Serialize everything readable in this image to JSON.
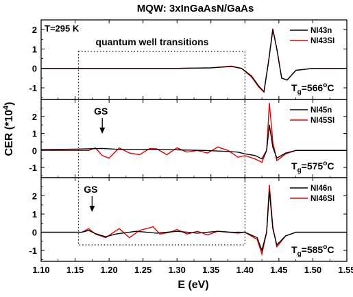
{
  "chart_data": {
    "type": "line",
    "title": "MQW: 3xInGaAsN/GaAs",
    "xlabel": "E (eV)",
    "ylabel": {
      "main": "CER (*10",
      "exp": "4",
      "close": ")"
    },
    "xlim": [
      1.1,
      1.55
    ],
    "xticks": [
      "1.10",
      "1.15",
      "1.20",
      "1.25",
      "1.30",
      "1.35",
      "1.40",
      "1.45",
      "1.50",
      "1.55"
    ],
    "annotations": {
      "temperature": "T=295 K",
      "qw_box_label": "quantum well transitions",
      "qw_box_xrange": [
        1.155,
        1.4
      ],
      "gs_label": "GS"
    },
    "panels": [
      {
        "ylim": [
          -1.6,
          2.5
        ],
        "yticks": [
          "2",
          "1",
          "0",
          "-1"
        ],
        "tg": {
          "pre": "T",
          "sub": "g",
          "val": "=566",
          "sup": "o",
          "unit": "C"
        },
        "series": [
          {
            "name": "NI43n",
            "color": "#000000",
            "points": [
              [
                1.1,
                0
              ],
              [
                1.3,
                0
              ],
              [
                1.35,
                0.03
              ],
              [
                1.38,
                0.1
              ],
              [
                1.395,
                0.0
              ],
              [
                1.41,
                -0.4
              ],
              [
                1.42,
                -0.9
              ],
              [
                1.428,
                -1.2
              ],
              [
                1.435,
                0.4
              ],
              [
                1.441,
                2.0
              ],
              [
                1.447,
                1.0
              ],
              [
                1.454,
                -0.5
              ],
              [
                1.462,
                -0.6
              ],
              [
                1.475,
                -0.1
              ],
              [
                1.5,
                0
              ],
              [
                1.55,
                0
              ]
            ]
          },
          {
            "name": "NI43SI",
            "color": "#e00000",
            "points": [
              [
                1.1,
                0
              ],
              [
                1.3,
                0
              ],
              [
                1.35,
                0.03
              ],
              [
                1.38,
                0.12
              ],
              [
                1.395,
                0.0
              ],
              [
                1.41,
                -0.45
              ],
              [
                1.42,
                -0.95
              ],
              [
                1.428,
                -1.22
              ],
              [
                1.435,
                0.4
              ],
              [
                1.441,
                2.05
              ],
              [
                1.447,
                1.0
              ],
              [
                1.454,
                -0.5
              ],
              [
                1.462,
                -0.6
              ],
              [
                1.475,
                -0.1
              ],
              [
                1.5,
                0
              ],
              [
                1.55,
                0
              ]
            ]
          }
        ]
      },
      {
        "ylim": [
          -1.6,
          3.0
        ],
        "yticks": [
          "2",
          "1",
          "0",
          "-1"
        ],
        "tg": {
          "pre": "T",
          "sub": "g",
          "val": "=575",
          "sup": "o",
          "unit": "C"
        },
        "gs_energy": 1.19,
        "series": [
          {
            "name": "NI45n",
            "color": "#000000",
            "points": [
              [
                1.1,
                0.05
              ],
              [
                1.15,
                0.08
              ],
              [
                1.19,
                0.12
              ],
              [
                1.22,
                0.05
              ],
              [
                1.26,
                0.06
              ],
              [
                1.3,
                0.04
              ],
              [
                1.34,
                0.0
              ],
              [
                1.37,
                -0.05
              ],
              [
                1.39,
                -0.1
              ],
              [
                1.4,
                -0.2
              ],
              [
                1.415,
                -0.3
              ],
              [
                1.425,
                -0.5
              ],
              [
                1.432,
                0.0
              ],
              [
                1.436,
                1.5
              ],
              [
                1.441,
                0.2
              ],
              [
                1.447,
                -0.45
              ],
              [
                1.46,
                -0.15
              ],
              [
                1.475,
                0
              ],
              [
                1.55,
                0
              ]
            ]
          },
          {
            "name": "NI45SI",
            "color": "#e00000",
            "points": [
              [
                1.1,
                0
              ],
              [
                1.17,
                0
              ],
              [
                1.18,
                0.15
              ],
              [
                1.19,
                -0.3
              ],
              [
                1.2,
                -0.45
              ],
              [
                1.215,
                0.15
              ],
              [
                1.23,
                -0.15
              ],
              [
                1.245,
                -0.25
              ],
              [
                1.26,
                0.12
              ],
              [
                1.27,
                0.1
              ],
              [
                1.285,
                -0.25
              ],
              [
                1.3,
                0.15
              ],
              [
                1.315,
                -0.1
              ],
              [
                1.33,
                0.0
              ],
              [
                1.345,
                -0.15
              ],
              [
                1.36,
                0.2
              ],
              [
                1.375,
                0.0
              ],
              [
                1.39,
                -0.4
              ],
              [
                1.4,
                -0.3
              ],
              [
                1.415,
                -0.5
              ],
              [
                1.425,
                -0.7
              ],
              [
                1.432,
                0.0
              ],
              [
                1.436,
                2.8
              ],
              [
                1.441,
                0.5
              ],
              [
                1.447,
                -0.6
              ],
              [
                1.46,
                -0.2
              ],
              [
                1.475,
                0
              ],
              [
                1.55,
                0
              ]
            ]
          }
        ]
      },
      {
        "ylim": [
          -1.6,
          3.0
        ],
        "yticks": [
          "2",
          "1",
          "0",
          "-1"
        ],
        "tg": {
          "pre": "T",
          "sub": "g",
          "val": "=585",
          "sup": "o",
          "unit": "C"
        },
        "gs_energy": 1.175,
        "series": [
          {
            "name": "NI46n",
            "color": "#000000",
            "points": [
              [
                1.1,
                0
              ],
              [
                1.16,
                0.0
              ],
              [
                1.17,
                0.1
              ],
              [
                1.18,
                -0.08
              ],
              [
                1.195,
                -0.25
              ],
              [
                1.21,
                -0.1
              ],
              [
                1.24,
                0.05
              ],
              [
                1.27,
                -0.05
              ],
              [
                1.3,
                0.05
              ],
              [
                1.33,
                -0.05
              ],
              [
                1.36,
                0.05
              ],
              [
                1.38,
                0.0
              ],
              [
                1.4,
                0.0
              ],
              [
                1.418,
                -0.3
              ],
              [
                1.425,
                -1.0
              ],
              [
                1.432,
                0.0
              ],
              [
                1.436,
                2.3
              ],
              [
                1.441,
                0.2
              ],
              [
                1.447,
                -0.7
              ],
              [
                1.46,
                -0.2
              ],
              [
                1.475,
                0
              ],
              [
                1.55,
                0
              ]
            ]
          },
          {
            "name": "NI46SI",
            "color": "#e00000",
            "points": [
              [
                1.1,
                0
              ],
              [
                1.16,
                0.0
              ],
              [
                1.17,
                0.2
              ],
              [
                1.18,
                -0.1
              ],
              [
                1.195,
                -0.3
              ],
              [
                1.215,
                0.2
              ],
              [
                1.23,
                -0.3
              ],
              [
                1.245,
                0.1
              ],
              [
                1.265,
                0.3
              ],
              [
                1.275,
                -0.1
              ],
              [
                1.29,
                0.0
              ],
              [
                1.3,
                0.15
              ],
              [
                1.315,
                -0.1
              ],
              [
                1.33,
                0.05
              ],
              [
                1.345,
                -0.15
              ],
              [
                1.36,
                0.05
              ],
              [
                1.375,
                0.0
              ],
              [
                1.39,
                -0.05
              ],
              [
                1.4,
                0.0
              ],
              [
                1.418,
                -0.4
              ],
              [
                1.425,
                -1.2
              ],
              [
                1.432,
                0.0
              ],
              [
                1.436,
                2.6
              ],
              [
                1.441,
                0.3
              ],
              [
                1.447,
                -0.8
              ],
              [
                1.46,
                -0.2
              ],
              [
                1.475,
                0
              ],
              [
                1.55,
                0
              ]
            ]
          }
        ]
      }
    ]
  }
}
